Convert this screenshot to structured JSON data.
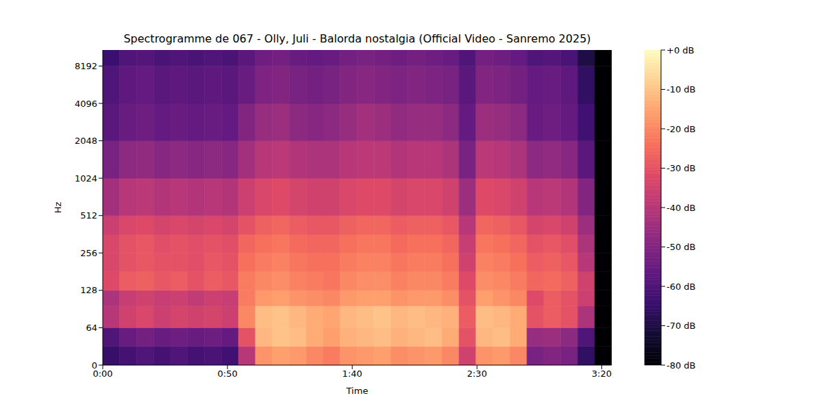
{
  "chart_data": {
    "type": "heatmap",
    "title": "Spectrogramme de 067 - Olly, Juli - Balorda nostalgia (Official Video - Sanremo 2025)",
    "x_label": "Time",
    "y_label": "Hz",
    "log": "y",
    "x_edges": [
      0,
      6.8,
      13.6,
      20.4,
      27.2,
      34,
      40.8,
      47.6,
      54.4,
      61.2,
      68,
      74.8,
      81.6,
      88.4,
      95.2,
      102,
      108.8,
      115.6,
      122.4,
      129.2,
      136,
      142.8,
      149.6,
      156.4,
      163.2,
      170,
      176.8,
      183.6,
      190.4,
      197.2,
      204
    ],
    "y_edges": [
      0,
      32,
      64,
      96,
      128,
      181,
      256,
      362,
      512,
      1024,
      2048,
      4096,
      8192,
      11025
    ],
    "cells": [
      [
        -65,
        -62,
        -60,
        -62,
        -60,
        -62,
        -61,
        -63,
        -40,
        -18,
        -16,
        -17,
        -20,
        -22,
        -18,
        -17,
        -16,
        -19,
        -18,
        -17,
        -20,
        -35,
        -18,
        -17,
        -20,
        -52,
        -50,
        -52,
        -66,
        -80
      ],
      [
        -60,
        -55,
        -53,
        -55,
        -54,
        -55,
        -54,
        -56,
        -30,
        -12,
        -10,
        -11,
        -14,
        -16,
        -13,
        -12,
        -11,
        -13,
        -12,
        -11,
        -14,
        -30,
        -12,
        -11,
        -14,
        -46,
        -45,
        -48,
        -60,
        -80
      ],
      [
        -40,
        -35,
        -33,
        -36,
        -34,
        -35,
        -34,
        -36,
        -20,
        -11,
        -10,
        -12,
        -14,
        -15,
        -12,
        -11,
        -10,
        -12,
        -11,
        -12,
        -13,
        -28,
        -11,
        -12,
        -14,
        -30,
        -28,
        -30,
        -42,
        -80
      ],
      [
        -42,
        -37,
        -35,
        -37,
        -36,
        -38,
        -36,
        -37,
        -22,
        -17,
        -16,
        -18,
        -19,
        -20,
        -17,
        -16,
        -16,
        -18,
        -17,
        -17,
        -19,
        -30,
        -16,
        -18,
        -20,
        -32,
        -28,
        -30,
        -36,
        -80
      ],
      [
        -32,
        -28,
        -27,
        -29,
        -28,
        -30,
        -28,
        -29,
        -22,
        -20,
        -19,
        -21,
        -22,
        -23,
        -20,
        -19,
        -19,
        -21,
        -20,
        -20,
        -22,
        -32,
        -19,
        -20,
        -22,
        -26,
        -25,
        -27,
        -35,
        -80
      ],
      [
        -33,
        -30,
        -29,
        -30,
        -30,
        -31,
        -29,
        -30,
        -24,
        -22,
        -21,
        -23,
        -24,
        -24,
        -22,
        -21,
        -21,
        -23,
        -22,
        -22,
        -24,
        -35,
        -21,
        -22,
        -24,
        -28,
        -27,
        -29,
        -40,
        -80
      ],
      [
        -33,
        -30,
        -29,
        -31,
        -30,
        -31,
        -30,
        -31,
        -26,
        -24,
        -23,
        -25,
        -26,
        -26,
        -24,
        -23,
        -23,
        -25,
        -24,
        -24,
        -26,
        -37,
        -23,
        -24,
        -26,
        -30,
        -29,
        -31,
        -42,
        -80
      ],
      [
        -36,
        -33,
        -32,
        -34,
        -33,
        -34,
        -33,
        -34,
        -30,
        -27,
        -26,
        -28,
        -29,
        -29,
        -27,
        -26,
        -26,
        -28,
        -27,
        -27,
        -29,
        -40,
        -26,
        -27,
        -29,
        -34,
        -33,
        -35,
        -45,
        -80
      ],
      [
        -44,
        -40,
        -39,
        -41,
        -40,
        -41,
        -40,
        -41,
        -36,
        -33,
        -32,
        -34,
        -35,
        -35,
        -33,
        -32,
        -32,
        -34,
        -33,
        -33,
        -35,
        -45,
        -32,
        -33,
        -35,
        -40,
        -39,
        -41,
        -50,
        -80
      ],
      [
        -52,
        -48,
        -47,
        -49,
        -48,
        -49,
        -48,
        -49,
        -44,
        -40,
        -39,
        -41,
        -42,
        -42,
        -40,
        -39,
        -39,
        -41,
        -40,
        -40,
        -42,
        -52,
        -39,
        -40,
        -42,
        -48,
        -47,
        -49,
        -58,
        -80
      ],
      [
        -58,
        -55,
        -54,
        -56,
        -55,
        -56,
        -55,
        -56,
        -50,
        -46,
        -45,
        -48,
        -49,
        -48,
        -46,
        -44,
        -45,
        -47,
        -46,
        -46,
        -48,
        -56,
        -45,
        -46,
        -48,
        -55,
        -54,
        -56,
        -63,
        -80
      ],
      [
        -60,
        -57,
        -56,
        -58,
        -57,
        -58,
        -57,
        -58,
        -55,
        -51,
        -50,
        -52,
        -53,
        -52,
        -50,
        -49,
        -50,
        -51,
        -50,
        -51,
        -52,
        -58,
        -50,
        -51,
        -53,
        -56,
        -55,
        -57,
        -66,
        -80
      ],
      [
        -64,
        -60,
        -59,
        -61,
        -60,
        -61,
        -60,
        -61,
        -58,
        -54,
        -53,
        -55,
        -56,
        -55,
        -53,
        -52,
        -53,
        -54,
        -53,
        -54,
        -55,
        -60,
        -53,
        -54,
        -56,
        -60,
        -59,
        -61,
        -70,
        -80
      ]
    ],
    "xlim": [
      0,
      204
    ],
    "xticks": [
      {
        "value": 0,
        "label": "0:00"
      },
      {
        "value": 50,
        "label": "0:50"
      },
      {
        "value": 100,
        "label": "1:40"
      },
      {
        "value": 150,
        "label": "2:30"
      },
      {
        "value": 200,
        "label": "3:20"
      }
    ],
    "ylim": [
      0,
      11025
    ],
    "yticks": [
      0,
      64,
      128,
      256,
      512,
      1024,
      2048,
      4096,
      8192
    ],
    "colorbar": {
      "range": [
        -80,
        0
      ],
      "ticks": [
        {
          "value": 0,
          "label": "+0 dB"
        },
        {
          "value": -10,
          "label": "-10 dB"
        },
        {
          "value": -20,
          "label": "-20 dB"
        },
        {
          "value": -30,
          "label": "-30 dB"
        },
        {
          "value": -40,
          "label": "-40 dB"
        },
        {
          "value": -50,
          "label": "-50 dB"
        },
        {
          "value": -60,
          "label": "-60 dB"
        },
        {
          "value": -70,
          "label": "-70 dB"
        },
        {
          "value": -80,
          "label": "-80 dB"
        }
      ]
    }
  }
}
